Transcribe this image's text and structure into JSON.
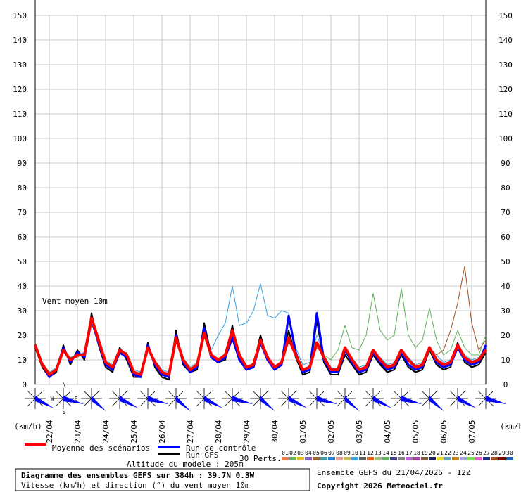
{
  "chart_data": {
    "type": "line",
    "title": "Diagramme des ensembles GEFS sur 384h : 39.7N 0.3W",
    "subtitle": "Vitesse (km/h) et direction (°) du vent moyen 10m",
    "annotation": "Vent moyen 10m",
    "y_unit_left": "(km/h)",
    "y_unit_right": "(km/h)",
    "altitude": "Altitude du modele : 205m",
    "run_info": "Ensemble GEFS du 21/04/2026 - 12Z",
    "copyright": "Copyright 2026 Meteociel.fr",
    "perts_label": "30 Perts.",
    "compass": [
      "N",
      "W",
      "E",
      "S"
    ],
    "xlim": [
      0,
      384
    ],
    "xticks": [
      {
        "value": 12,
        "label": "22/04"
      },
      {
        "value": 36,
        "label": "23/04"
      },
      {
        "value": 60,
        "label": "24/04"
      },
      {
        "value": 84,
        "label": "25/04"
      },
      {
        "value": 108,
        "label": "26/04"
      },
      {
        "value": 132,
        "label": "27/04"
      },
      {
        "value": 156,
        "label": "28/04"
      },
      {
        "value": 180,
        "label": "29/04"
      },
      {
        "value": 204,
        "label": "30/04"
      },
      {
        "value": 228,
        "label": "01/05"
      },
      {
        "value": 252,
        "label": "02/05"
      },
      {
        "value": 276,
        "label": "03/05"
      },
      {
        "value": 300,
        "label": "04/05"
      },
      {
        "value": 324,
        "label": "05/05"
      },
      {
        "value": 348,
        "label": "06/05"
      },
      {
        "value": 372,
        "label": "07/05"
      }
    ],
    "ylim": [
      0,
      150
    ],
    "yticks": [
      0,
      10,
      20,
      30,
      40,
      50,
      60,
      70,
      80,
      90,
      100,
      110,
      120,
      130,
      140,
      150
    ],
    "grid": true,
    "x": [
      0,
      6,
      12,
      18,
      24,
      30,
      36,
      42,
      48,
      54,
      60,
      66,
      72,
      78,
      84,
      90,
      96,
      102,
      108,
      114,
      120,
      126,
      132,
      138,
      144,
      150,
      156,
      162,
      168,
      174,
      180,
      186,
      192,
      198,
      204,
      210,
      216,
      222,
      228,
      234,
      240,
      246,
      252,
      258,
      264,
      270,
      276,
      282,
      288,
      294,
      300,
      306,
      312,
      318,
      324,
      330,
      336,
      342,
      348,
      354,
      360,
      366,
      372,
      378,
      384
    ],
    "series": [
      {
        "name": "Moyenne des scénarios",
        "color": "#ff0000",
        "values": [
          16,
          8,
          4,
          6,
          14,
          10,
          12,
          12,
          27,
          18,
          9,
          7,
          14,
          12,
          5,
          4,
          15,
          9,
          5,
          4,
          19,
          10,
          6,
          8,
          21,
          12,
          10,
          12,
          22,
          12,
          7,
          8,
          18,
          11,
          7,
          9,
          19,
          12,
          6,
          7,
          17,
          11,
          6,
          6,
          15,
          10,
          6,
          7,
          14,
          10,
          7,
          8,
          14,
          10,
          7,
          8,
          15,
          10,
          8,
          9,
          16,
          11,
          9,
          10,
          14
        ]
      },
      {
        "name": "Run de contrôle",
        "color": "#0000ff",
        "values": [
          16,
          8,
          3,
          6,
          15,
          9,
          13,
          11,
          26,
          17,
          8,
          6,
          13,
          11,
          4,
          3,
          16,
          8,
          4,
          3,
          20,
          9,
          5,
          7,
          23,
          11,
          9,
          11,
          19,
          10,
          6,
          7,
          17,
          10,
          6,
          8,
          28,
          13,
          5,
          6,
          29,
          10,
          5,
          5,
          14,
          9,
          5,
          6,
          13,
          9,
          6,
          7,
          13,
          8,
          6,
          7,
          15,
          9,
          7,
          8,
          15,
          10,
          8,
          9,
          16
        ]
      },
      {
        "name": "Run GFS",
        "color": "#000000",
        "values": [
          15,
          7,
          3,
          5,
          16,
          8,
          14,
          10,
          29,
          16,
          7,
          5,
          15,
          10,
          3,
          3,
          17,
          7,
          3,
          2,
          22,
          8,
          5,
          6,
          25,
          12,
          9,
          10,
          24,
          11,
          6,
          8,
          20,
          10,
          6,
          8,
          22,
          11,
          4,
          5,
          26,
          9,
          4,
          4,
          12,
          8,
          4,
          5,
          12,
          8,
          5,
          6,
          12,
          7,
          5,
          6,
          14,
          8,
          6,
          7,
          17,
          9,
          7,
          8,
          13
        ]
      }
    ],
    "perturbations": [
      {
        "name": "01",
        "color": "#e0803a"
      },
      {
        "name": "02",
        "color": "#70b050"
      },
      {
        "name": "03",
        "color": "#e0c020"
      },
      {
        "name": "04",
        "color": "#8060c0"
      },
      {
        "name": "05",
        "color": "#a06030"
      },
      {
        "name": "06",
        "color": "#40a0a0"
      },
      {
        "name": "07",
        "color": "#2080e0"
      },
      {
        "name": "08",
        "color": "#e0a0a0"
      },
      {
        "name": "09",
        "color": "#c0c060"
      },
      {
        "name": "10",
        "color": "#3aa0e0",
        "values": [
          16,
          9,
          5,
          7,
          13,
          11,
          12,
          13,
          26,
          19,
          10,
          8,
          13,
          12,
          6,
          5,
          14,
          10,
          6,
          5,
          18,
          11,
          7,
          9,
          22,
          14,
          20,
          25,
          40,
          24,
          25,
          30,
          41,
          28,
          27,
          30,
          29,
          15,
          8,
          9,
          20,
          12,
          7,
          6,
          14,
          11,
          7,
          8,
          13,
          11,
          8,
          9,
          14,
          11,
          8,
          9,
          15,
          12,
          9,
          10,
          16,
          12,
          10,
          11,
          15
        ]
      },
      {
        "name": "11",
        "color": "#606060"
      },
      {
        "name": "12",
        "color": "#e06020"
      },
      {
        "name": "13",
        "color": "#a0c080"
      },
      {
        "name": "14",
        "color": "#60b060",
        "values": [
          15,
          8,
          4,
          6,
          14,
          10,
          12,
          12,
          28,
          18,
          9,
          7,
          15,
          12,
          5,
          4,
          15,
          9,
          5,
          4,
          18,
          10,
          6,
          8,
          20,
          12,
          9,
          11,
          20,
          11,
          7,
          8,
          17,
          11,
          7,
          8,
          18,
          12,
          6,
          7,
          16,
          12,
          10,
          14,
          24,
          15,
          14,
          20,
          37,
          22,
          18,
          20,
          39,
          20,
          15,
          18,
          31,
          18,
          12,
          14,
          22,
          15,
          12,
          12,
          20
        ]
      },
      {
        "name": "15",
        "color": "#404080"
      },
      {
        "name": "16",
        "color": "#808080"
      },
      {
        "name": "17",
        "color": "#c060e0"
      },
      {
        "name": "18",
        "color": "#a040a0"
      },
      {
        "name": "19",
        "color": "#806040"
      },
      {
        "name": "20",
        "color": "#202060"
      },
      {
        "name": "21",
        "color": "#e0e020"
      },
      {
        "name": "22",
        "color": "#60a0c0"
      },
      {
        "name": "23",
        "color": "#c08020"
      },
      {
        "name": "24",
        "color": "#a0a0e0"
      },
      {
        "name": "25",
        "color": "#80e040"
      },
      {
        "name": "26",
        "color": "#e060c0"
      },
      {
        "name": "27",
        "color": "#203080"
      },
      {
        "name": "28",
        "color": "#a05020",
        "values": [
          17,
          9,
          5,
          5,
          13,
          11,
          11,
          13,
          25,
          19,
          8,
          8,
          13,
          13,
          4,
          5,
          14,
          10,
          4,
          5,
          17,
          11,
          5,
          9,
          19,
          13,
          9,
          13,
          20,
          13,
          6,
          9,
          16,
          12,
          6,
          10,
          17,
          13,
          5,
          8,
          15,
          12,
          5,
          7,
          13,
          11,
          5,
          8,
          12,
          11,
          6,
          9,
          12,
          11,
          6,
          9,
          14,
          12,
          14,
          22,
          33,
          48,
          25,
          14,
          18
        ]
      },
      {
        "name": "29",
        "color": "#800000"
      },
      {
        "name": "30",
        "color": "#2060c0"
      }
    ]
  }
}
